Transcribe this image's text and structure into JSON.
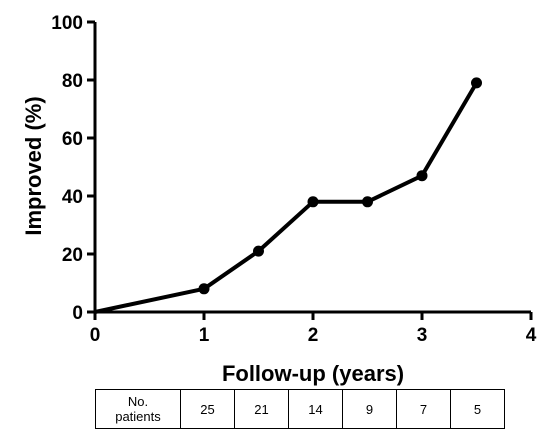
{
  "chart_data": {
    "type": "line",
    "xlabel": "Follow-up (years)",
    "ylabel": "Improved (%)",
    "xlim": [
      0,
      4
    ],
    "ylim": [
      0,
      100
    ],
    "xticks": [
      "0",
      "1",
      "2",
      "3",
      "4"
    ],
    "yticks": [
      "0",
      "20",
      "40",
      "60",
      "80",
      "100"
    ],
    "grid": false,
    "series": [
      {
        "x": [
          0,
          1,
          1.5,
          2,
          2.5,
          3,
          3.5
        ],
        "y": [
          0,
          8,
          21,
          38,
          38,
          47,
          79
        ],
        "color": "#000000"
      }
    ]
  },
  "patients_table": {
    "label_line1": "No.",
    "label_line2": "patients",
    "counts": [
      "25",
      "21",
      "14",
      "9",
      "7",
      "5"
    ]
  }
}
